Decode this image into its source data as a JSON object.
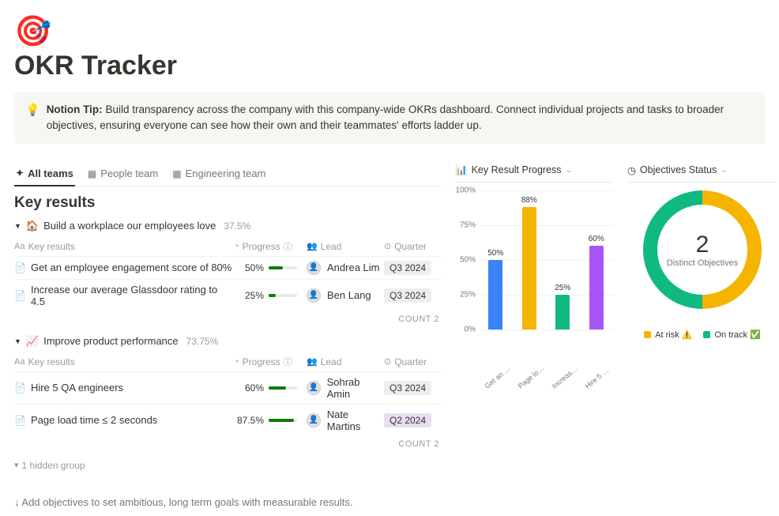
{
  "icon": "🎯",
  "title": "OKR Tracker",
  "tip": {
    "icon": "💡",
    "bold": "Notion Tip:",
    "text": "Build transparency across the company with this company-wide OKRs dashboard. Connect individual projects and tasks to broader objectives, ensuring everyone can see how their own and their teammates' efforts ladder up."
  },
  "tabs": [
    {
      "icon": "✦",
      "label": "All teams",
      "active": true
    },
    {
      "icon": "▦",
      "label": "People team",
      "active": false
    },
    {
      "icon": "▦",
      "label": "Engineering team",
      "active": false
    }
  ],
  "section_title": "Key results",
  "headers": {
    "kr": "Key results",
    "prog": "Progress",
    "lead": "Lead",
    "qtr": "Quarter"
  },
  "groups": [
    {
      "icon": "🏠",
      "title": "Build a workplace our employees love",
      "pct": "37.5%",
      "rows": [
        {
          "name": "Get an employee engagement score of 80%",
          "progress": "50%",
          "progress_v": 50,
          "lead": "Andrea Lim",
          "quarter": "Q3 2024",
          "q_bg": "#eeeeed",
          "q_fg": "#37352f"
        },
        {
          "name": "Increase our average Glassdoor rating to 4.5",
          "progress": "25%",
          "progress_v": 25,
          "lead": "Ben Lang",
          "quarter": "Q3 2024",
          "q_bg": "#eeeeed",
          "q_fg": "#37352f"
        }
      ],
      "count_label": "COUNT",
      "count": "2"
    },
    {
      "icon": "📈",
      "title": "Improve product performance",
      "pct": "73.75%",
      "rows": [
        {
          "name": "Hire 5 QA engineers",
          "progress": "60%",
          "progress_v": 60,
          "lead": "Sohrab Amin",
          "quarter": "Q3 2024",
          "q_bg": "#eeeeed",
          "q_fg": "#37352f"
        },
        {
          "name": "Page load time ≤ 2 seconds",
          "progress": "87.5%",
          "progress_v": 87.5,
          "lead": "Nate Martins",
          "quarter": "Q2 2024",
          "q_bg": "#e8deee",
          "q_fg": "#412454"
        }
      ],
      "count_label": "COUNT",
      "count": "2"
    }
  ],
  "hidden_group": "1 hidden group",
  "footer": "↓ Add objectives to set ambitious, long term goals with measurable results.",
  "bar_chart": {
    "title": "Key Result Progress",
    "ymax": 100,
    "yticks": [
      "0%",
      "25%",
      "50%",
      "75%",
      "100%"
    ],
    "bars": [
      {
        "label": "50%",
        "value": 50,
        "color": "#3b82f6",
        "x": "Get an employ…"
      },
      {
        "label": "88%",
        "value": 88,
        "color": "#f5b400",
        "x": "Page load time ≤ 2 s…"
      },
      {
        "label": "25%",
        "value": 25,
        "color": "#10b981",
        "x": "Increase our average…"
      },
      {
        "label": "60%",
        "value": 60,
        "color": "#a855f7",
        "x": "Hire 5 QA engineers"
      }
    ]
  },
  "donut": {
    "title": "Objectives Status",
    "number": "2",
    "subtitle": "Distinct Objectives",
    "slices": [
      {
        "color": "#f5b400",
        "pct": 50
      },
      {
        "color": "#10b981",
        "pct": 50
      }
    ],
    "legend": [
      {
        "color": "#f5b400",
        "label": "At risk ⚠️"
      },
      {
        "color": "#10b981",
        "label": "On track ✅"
      }
    ]
  }
}
